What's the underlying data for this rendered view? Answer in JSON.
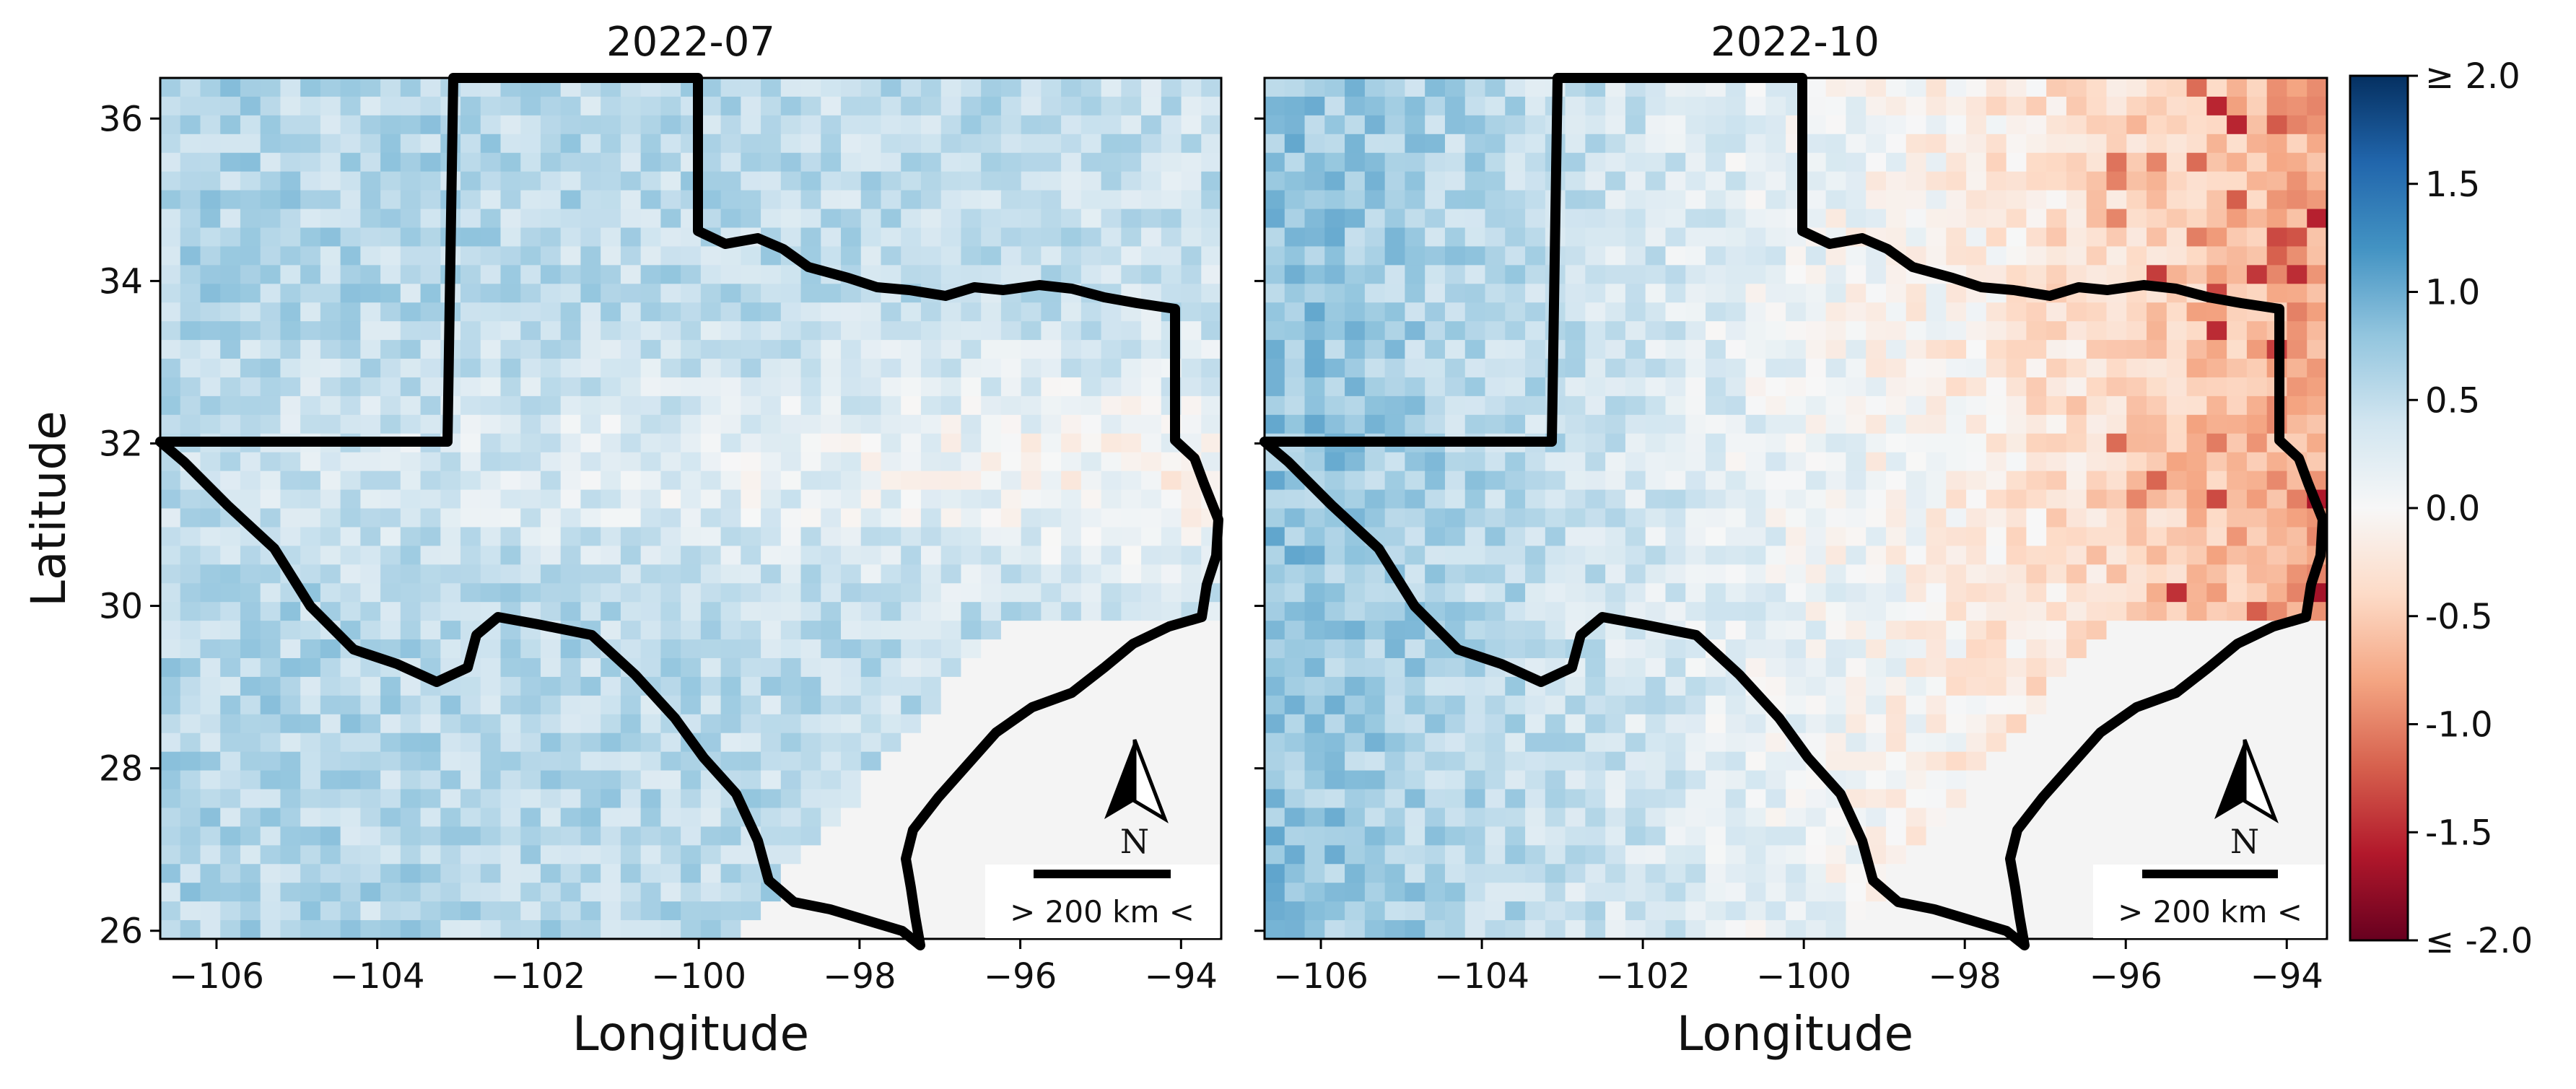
{
  "chart_data": [
    {
      "type": "heatmap",
      "title": "2022-07",
      "xlabel": "Longitude",
      "ylabel": "Latitude",
      "xlim": [
        -106.7,
        -93.5
      ],
      "ylim": [
        25.9,
        36.5
      ],
      "x_ticks": [
        -106,
        -104,
        -102,
        -100,
        -98,
        -96,
        -94
      ],
      "x_tick_labels": [
        "−106",
        "−104",
        "−102",
        "−100",
        "−98",
        "−96",
        "−94"
      ],
      "y_ticks": [
        26,
        28,
        30,
        32,
        34,
        36
      ],
      "y_tick_labels": [
        "26",
        "28",
        "30",
        "32",
        "34",
        "36"
      ],
      "grid": false,
      "pattern": "mostly positive; about 0.6 in the west, fading toward 0 in the central band and southeast",
      "west_value": 0.6,
      "east_value": 0.45
    },
    {
      "type": "heatmap",
      "title": "2022-10",
      "xlabel": "Longitude",
      "ylabel": "",
      "xlim": [
        -106.7,
        -93.5
      ],
      "ylim": [
        25.9,
        36.5
      ],
      "x_ticks": [
        -106,
        -104,
        -102,
        -100,
        -98,
        -96,
        -94
      ],
      "x_tick_labels": [
        "−106",
        "−104",
        "−102",
        "−100",
        "−98",
        "−96",
        "−94"
      ],
      "y_ticks": [
        26,
        28,
        30,
        32,
        34,
        36
      ],
      "y_tick_labels": [
        "",
        "",
        "",
        "",
        "",
        ""
      ],
      "grid": false,
      "pattern": "positive in the west (about 0.8), turning negative in the east (about -0.5, down to -1.5 at spots)",
      "west_value": 0.8,
      "east_value": -0.5
    }
  ],
  "colorbar": {
    "colormap": "RdBu",
    "min": -2.0,
    "max": 2.0,
    "tick_labels": [
      "≥ 2.0",
      "1.5",
      "1.0",
      "0.5",
      "0.0",
      "-0.5",
      "-1.0",
      "-1.5",
      "≤ -2.0"
    ],
    "colors": [
      "#67001f",
      "#b2182b",
      "#d6604d",
      "#f4a582",
      "#fddbc7",
      "#f7f7f7",
      "#d1e5f0",
      "#92c5de",
      "#4393c3",
      "#2166ac",
      "#053061"
    ]
  },
  "north_arrow": {
    "letter": "N"
  },
  "scale_bar": {
    "label": "> 200 km <"
  },
  "colors": {
    "outside_data": "#f4f4f4",
    "border": "#000000"
  }
}
